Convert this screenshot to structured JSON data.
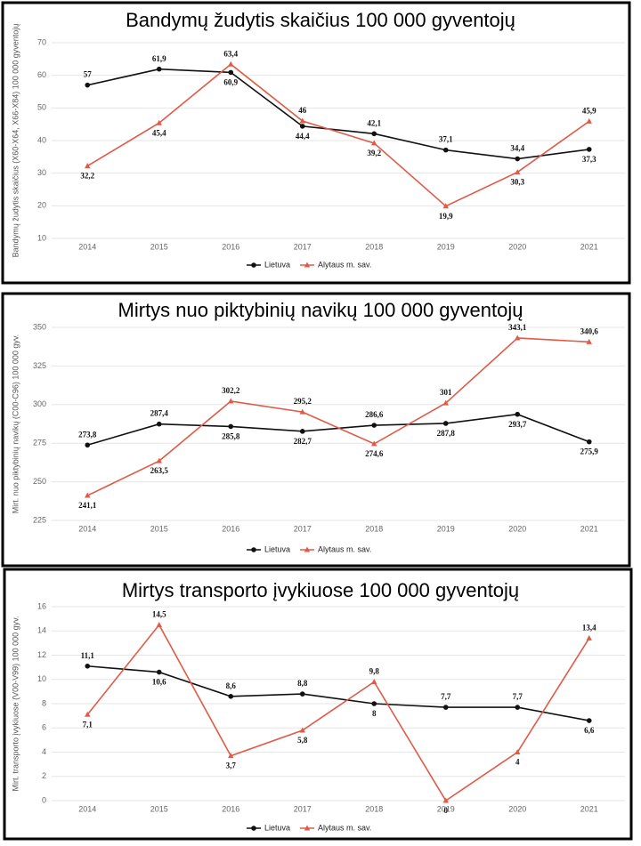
{
  "chart_data": [
    {
      "type": "line",
      "title": "Bandymų žudytis skaičius 100 000 gyventojų",
      "y_label": "Bandymų žudytis skaičius (X60-X64, X66-X84) 100 000 gyventojų",
      "categories": [
        "2014",
        "2015",
        "2016",
        "2017",
        "2018",
        "2019",
        "2020",
        "2021"
      ],
      "ylim": [
        10,
        70
      ],
      "yticks": [
        10,
        20,
        30,
        40,
        50,
        60,
        70
      ],
      "series": [
        {
          "name": "Lietuva",
          "color": "#111111",
          "values": [
            57,
            61.9,
            60.9,
            44.4,
            42.1,
            37.1,
            34.4,
            37.3
          ],
          "value_labels": [
            "57",
            "61,9",
            "60,9",
            "44,4",
            "42,1",
            "37,1",
            "34,4",
            "37,3"
          ]
        },
        {
          "name": "Alytaus m. sav.",
          "color": "#e05a47",
          "values": [
            32.2,
            45.4,
            63.4,
            46,
            39.2,
            19.9,
            30.3,
            45.9
          ],
          "value_labels": [
            "32,2",
            "45,4",
            "63,4",
            "46",
            "39,2",
            "19,9",
            "30,3",
            "45,9"
          ]
        }
      ]
    },
    {
      "type": "line",
      "title": "Mirtys nuo piktybinių navikų 100 000 gyventojų",
      "y_label": "Mirt. nuo piktybinių navikų (C00-C96) 100 000 gyv.",
      "categories": [
        "2014",
        "2015",
        "2016",
        "2017",
        "2018",
        "2019",
        "2020",
        "2021"
      ],
      "ylim": [
        225,
        350
      ],
      "yticks": [
        225,
        250,
        275,
        300,
        325,
        350
      ],
      "series": [
        {
          "name": "Lietuva",
          "color": "#111111",
          "values": [
            273.8,
            287.4,
            285.8,
            282.7,
            286.6,
            287.8,
            293.7,
            275.9
          ],
          "value_labels": [
            "273,8",
            "287,4",
            "285,8",
            "282,7",
            "286,6",
            "287,8",
            "293,7",
            "275,9"
          ]
        },
        {
          "name": "Alytaus m. sav.",
          "color": "#e05a47",
          "values": [
            241.1,
            263.5,
            302.2,
            295.2,
            274.6,
            301,
            343.1,
            340.6
          ],
          "value_labels": [
            "241,1",
            "263,5",
            "302,2",
            "295,2",
            "274,6",
            "301",
            "343,1",
            "340,6"
          ]
        }
      ]
    },
    {
      "type": "line",
      "title": "Mirtys transporto įvykiuose 100 000 gyventojų",
      "y_label": "Mirt. transporto įvykiuose (V00-V99) 100 000 gyv.",
      "categories": [
        "2014",
        "2015",
        "2016",
        "2017",
        "2018",
        "2019",
        "2020",
        "2021"
      ],
      "ylim": [
        0,
        16
      ],
      "yticks": [
        0,
        2,
        4,
        6,
        8,
        10,
        12,
        14,
        16
      ],
      "series": [
        {
          "name": "Lietuva",
          "color": "#111111",
          "values": [
            11.1,
            10.6,
            8.6,
            8.8,
            8,
            7.7,
            7.7,
            6.6
          ],
          "value_labels": [
            "11,1",
            "10,6",
            "8,6",
            "8,8",
            "8",
            "7,7",
            "7,7",
            "6,6"
          ]
        },
        {
          "name": "Alytaus m. sav.",
          "color": "#e05a47",
          "values": [
            7.1,
            14.5,
            3.7,
            5.8,
            9.8,
            0,
            4,
            13.4
          ],
          "value_labels": [
            "7,1",
            "14,5",
            "3,7",
            "5,8",
            "9,8",
            "0",
            "4",
            "13,4"
          ]
        }
      ]
    }
  ]
}
